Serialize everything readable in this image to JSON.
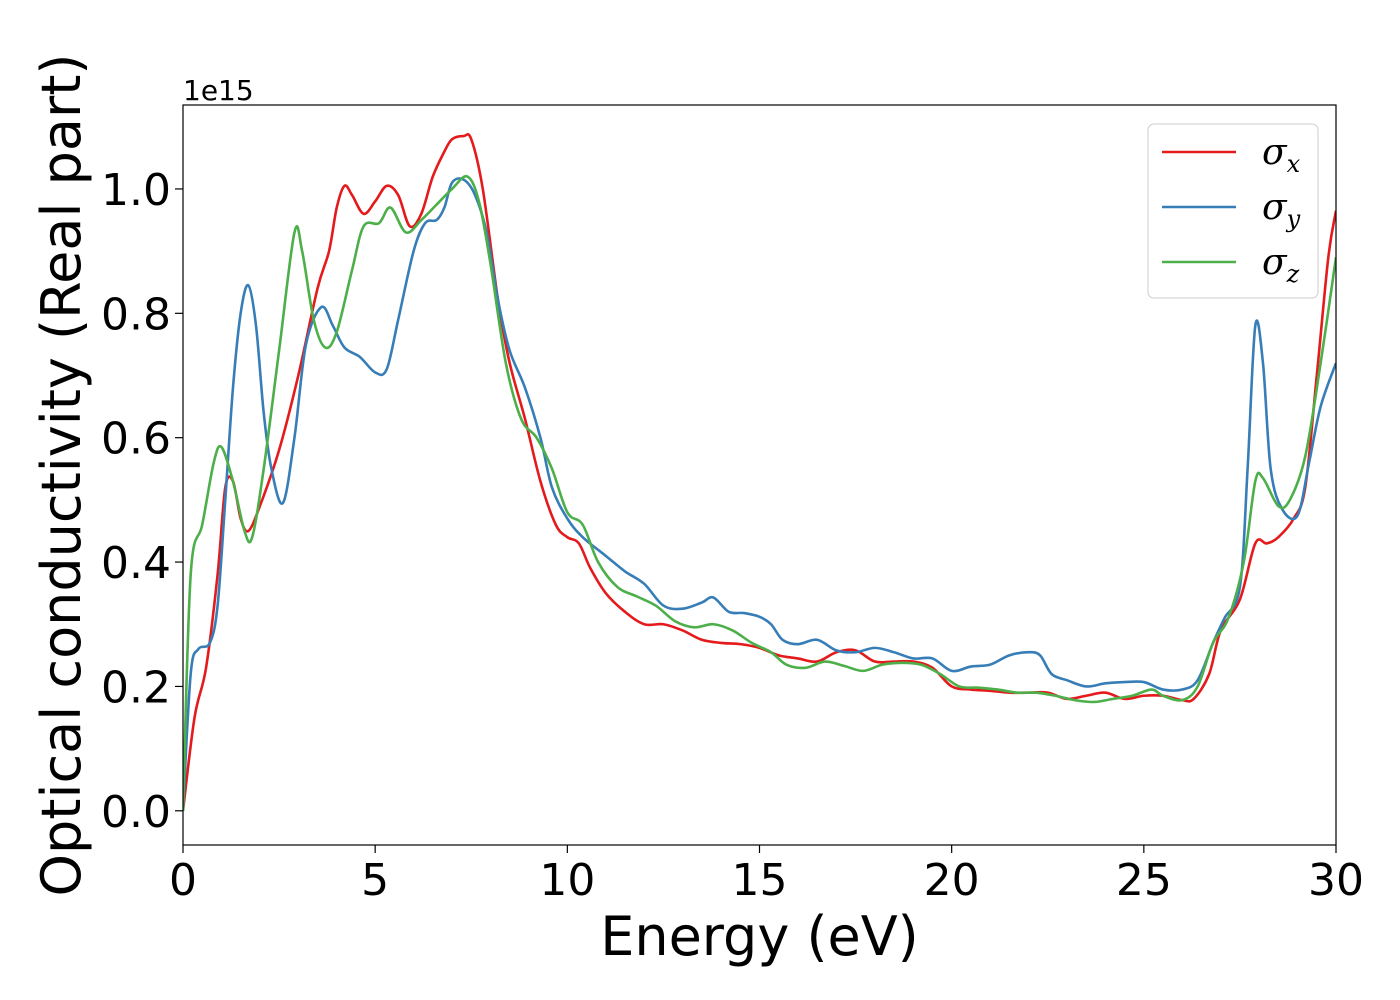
{
  "chart_data": {
    "type": "line",
    "title": "",
    "xlabel": "Energy (eV)",
    "ylabel": "Optical conductivity (Real part)",
    "y_offset_text": "1e15",
    "xlim": [
      0,
      30
    ],
    "ylim": [
      -0.055,
      1.135
    ],
    "x_ticks": [
      0,
      5,
      10,
      15,
      20,
      25,
      30
    ],
    "x_tick_labels": [
      "0",
      "5",
      "10",
      "15",
      "20",
      "25",
      "30"
    ],
    "y_ticks": [
      0.0,
      0.2,
      0.4,
      0.6,
      0.8,
      1.0
    ],
    "y_tick_labels": [
      "0.0",
      "0.2",
      "0.4",
      "0.6",
      "0.8",
      "1.0"
    ],
    "grid": false,
    "legend_position": "top-right",
    "series": [
      {
        "name": "σx",
        "legend_symbol": "σ",
        "legend_subscript": "x",
        "color": "#e41a1c",
        "points": [
          [
            0,
            0
          ],
          [
            0.3,
            0.15
          ],
          [
            0.6,
            0.23
          ],
          [
            0.9,
            0.38
          ],
          [
            1.1,
            0.52
          ],
          [
            1.3,
            0.53
          ],
          [
            1.5,
            0.47
          ],
          [
            1.7,
            0.45
          ],
          [
            2.0,
            0.49
          ],
          [
            2.5,
            0.58
          ],
          [
            3.0,
            0.7
          ],
          [
            3.5,
            0.84
          ],
          [
            3.8,
            0.9
          ],
          [
            4.0,
            0.97
          ],
          [
            4.2,
            1.005
          ],
          [
            4.4,
            0.99
          ],
          [
            4.7,
            0.96
          ],
          [
            5.0,
            0.98
          ],
          [
            5.3,
            1.005
          ],
          [
            5.6,
            0.99
          ],
          [
            5.9,
            0.94
          ],
          [
            6.2,
            0.96
          ],
          [
            6.5,
            1.02
          ],
          [
            6.8,
            1.06
          ],
          [
            7.0,
            1.08
          ],
          [
            7.3,
            1.085
          ],
          [
            7.5,
            1.08
          ],
          [
            7.8,
            1.0
          ],
          [
            8.2,
            0.82
          ],
          [
            8.5,
            0.72
          ],
          [
            8.9,
            0.63
          ],
          [
            9.3,
            0.53
          ],
          [
            9.7,
            0.46
          ],
          [
            10.0,
            0.44
          ],
          [
            10.3,
            0.43
          ],
          [
            10.6,
            0.39
          ],
          [
            11.0,
            0.35
          ],
          [
            11.5,
            0.32
          ],
          [
            12.0,
            0.3
          ],
          [
            12.5,
            0.3
          ],
          [
            13.0,
            0.29
          ],
          [
            13.5,
            0.275
          ],
          [
            14.0,
            0.27
          ],
          [
            14.5,
            0.268
          ],
          [
            15.0,
            0.262
          ],
          [
            15.5,
            0.25
          ],
          [
            16.0,
            0.245
          ],
          [
            16.5,
            0.24
          ],
          [
            17.0,
            0.255
          ],
          [
            17.5,
            0.258
          ],
          [
            18.0,
            0.24
          ],
          [
            18.5,
            0.24
          ],
          [
            19.0,
            0.24
          ],
          [
            19.5,
            0.23
          ],
          [
            20.0,
            0.2
          ],
          [
            20.5,
            0.195
          ],
          [
            21.0,
            0.193
          ],
          [
            21.5,
            0.19
          ],
          [
            22.0,
            0.19
          ],
          [
            22.5,
            0.19
          ],
          [
            23.0,
            0.18
          ],
          [
            23.5,
            0.185
          ],
          [
            24.0,
            0.19
          ],
          [
            24.5,
            0.18
          ],
          [
            25.0,
            0.185
          ],
          [
            25.5,
            0.185
          ],
          [
            26.0,
            0.178
          ],
          [
            26.3,
            0.18
          ],
          [
            26.7,
            0.22
          ],
          [
            27.0,
            0.29
          ],
          [
            27.5,
            0.34
          ],
          [
            27.9,
            0.43
          ],
          [
            28.2,
            0.43
          ],
          [
            28.5,
            0.44
          ],
          [
            28.9,
            0.47
          ],
          [
            29.2,
            0.52
          ],
          [
            29.5,
            0.7
          ],
          [
            29.8,
            0.89
          ],
          [
            30.0,
            0.965
          ]
        ]
      },
      {
        "name": "σy",
        "legend_symbol": "σ",
        "legend_subscript": "y",
        "color": "#377eb8",
        "points": [
          [
            0,
            0
          ],
          [
            0.2,
            0.22
          ],
          [
            0.4,
            0.26
          ],
          [
            0.7,
            0.27
          ],
          [
            0.9,
            0.33
          ],
          [
            1.1,
            0.5
          ],
          [
            1.3,
            0.68
          ],
          [
            1.5,
            0.8
          ],
          [
            1.7,
            0.845
          ],
          [
            1.9,
            0.78
          ],
          [
            2.1,
            0.64
          ],
          [
            2.3,
            0.55
          ],
          [
            2.6,
            0.495
          ],
          [
            2.9,
            0.6
          ],
          [
            3.2,
            0.75
          ],
          [
            3.6,
            0.81
          ],
          [
            3.9,
            0.78
          ],
          [
            4.2,
            0.745
          ],
          [
            4.6,
            0.73
          ],
          [
            5.0,
            0.705
          ],
          [
            5.3,
            0.71
          ],
          [
            5.6,
            0.79
          ],
          [
            6.0,
            0.9
          ],
          [
            6.3,
            0.945
          ],
          [
            6.6,
            0.95
          ],
          [
            6.8,
            0.97
          ],
          [
            7.0,
            1.01
          ],
          [
            7.3,
            1.015
          ],
          [
            7.6,
            0.99
          ],
          [
            7.9,
            0.93
          ],
          [
            8.2,
            0.82
          ],
          [
            8.5,
            0.74
          ],
          [
            8.9,
            0.68
          ],
          [
            9.3,
            0.6
          ],
          [
            9.6,
            0.52
          ],
          [
            10.0,
            0.47
          ],
          [
            10.4,
            0.44
          ],
          [
            11.0,
            0.41
          ],
          [
            11.5,
            0.385
          ],
          [
            12.0,
            0.365
          ],
          [
            12.5,
            0.33
          ],
          [
            13.0,
            0.325
          ],
          [
            13.5,
            0.335
          ],
          [
            13.8,
            0.343
          ],
          [
            14.2,
            0.32
          ],
          [
            14.6,
            0.318
          ],
          [
            15.0,
            0.312
          ],
          [
            15.3,
            0.3
          ],
          [
            15.6,
            0.275
          ],
          [
            16.0,
            0.268
          ],
          [
            16.5,
            0.275
          ],
          [
            17.0,
            0.258
          ],
          [
            17.5,
            0.255
          ],
          [
            18.0,
            0.262
          ],
          [
            18.5,
            0.255
          ],
          [
            19.0,
            0.245
          ],
          [
            19.5,
            0.245
          ],
          [
            20.0,
            0.225
          ],
          [
            20.5,
            0.232
          ],
          [
            21.0,
            0.235
          ],
          [
            21.5,
            0.25
          ],
          [
            22.0,
            0.255
          ],
          [
            22.3,
            0.25
          ],
          [
            22.6,
            0.22
          ],
          [
            23.0,
            0.21
          ],
          [
            23.5,
            0.2
          ],
          [
            24.0,
            0.205
          ],
          [
            24.5,
            0.207
          ],
          [
            25.0,
            0.207
          ],
          [
            25.5,
            0.195
          ],
          [
            26.0,
            0.195
          ],
          [
            26.4,
            0.21
          ],
          [
            26.8,
            0.27
          ],
          [
            27.1,
            0.31
          ],
          [
            27.5,
            0.36
          ],
          [
            27.7,
            0.55
          ],
          [
            27.9,
            0.78
          ],
          [
            28.1,
            0.72
          ],
          [
            28.3,
            0.55
          ],
          [
            28.6,
            0.485
          ],
          [
            29.0,
            0.475
          ],
          [
            29.3,
            0.56
          ],
          [
            29.6,
            0.65
          ],
          [
            30.0,
            0.72
          ]
        ]
      },
      {
        "name": "σz",
        "legend_symbol": "σ",
        "legend_subscript": "z",
        "color": "#4daf4a",
        "points": [
          [
            0,
            0
          ],
          [
            0.2,
            0.38
          ],
          [
            0.5,
            0.46
          ],
          [
            0.8,
            0.56
          ],
          [
            1.0,
            0.585
          ],
          [
            1.3,
            0.53
          ],
          [
            1.6,
            0.45
          ],
          [
            1.8,
            0.44
          ],
          [
            2.1,
            0.55
          ],
          [
            2.5,
            0.74
          ],
          [
            2.9,
            0.93
          ],
          [
            3.1,
            0.9
          ],
          [
            3.4,
            0.79
          ],
          [
            3.7,
            0.745
          ],
          [
            4.0,
            0.77
          ],
          [
            4.4,
            0.87
          ],
          [
            4.7,
            0.94
          ],
          [
            5.1,
            0.945
          ],
          [
            5.4,
            0.97
          ],
          [
            5.8,
            0.93
          ],
          [
            6.2,
            0.95
          ],
          [
            6.6,
            0.975
          ],
          [
            7.0,
            1.0
          ],
          [
            7.4,
            1.02
          ],
          [
            7.7,
            0.98
          ],
          [
            8.0,
            0.88
          ],
          [
            8.4,
            0.72
          ],
          [
            8.8,
            0.63
          ],
          [
            9.2,
            0.6
          ],
          [
            9.6,
            0.55
          ],
          [
            10.0,
            0.48
          ],
          [
            10.4,
            0.46
          ],
          [
            10.8,
            0.4
          ],
          [
            11.3,
            0.36
          ],
          [
            11.8,
            0.345
          ],
          [
            12.3,
            0.33
          ],
          [
            12.8,
            0.305
          ],
          [
            13.3,
            0.295
          ],
          [
            13.8,
            0.3
          ],
          [
            14.3,
            0.29
          ],
          [
            14.8,
            0.27
          ],
          [
            15.3,
            0.255
          ],
          [
            15.7,
            0.235
          ],
          [
            16.2,
            0.23
          ],
          [
            16.7,
            0.24
          ],
          [
            17.2,
            0.233
          ],
          [
            17.7,
            0.225
          ],
          [
            18.2,
            0.235
          ],
          [
            18.7,
            0.238
          ],
          [
            19.2,
            0.235
          ],
          [
            19.7,
            0.22
          ],
          [
            20.2,
            0.2
          ],
          [
            20.7,
            0.198
          ],
          [
            21.2,
            0.195
          ],
          [
            21.7,
            0.19
          ],
          [
            22.2,
            0.19
          ],
          [
            22.7,
            0.185
          ],
          [
            23.2,
            0.178
          ],
          [
            23.7,
            0.175
          ],
          [
            24.2,
            0.18
          ],
          [
            24.7,
            0.185
          ],
          [
            25.2,
            0.195
          ],
          [
            25.5,
            0.185
          ],
          [
            26.0,
            0.178
          ],
          [
            26.4,
            0.2
          ],
          [
            26.8,
            0.27
          ],
          [
            27.2,
            0.31
          ],
          [
            27.6,
            0.4
          ],
          [
            27.9,
            0.53
          ],
          [
            28.1,
            0.535
          ],
          [
            28.5,
            0.49
          ],
          [
            28.8,
            0.5
          ],
          [
            29.2,
            0.57
          ],
          [
            29.6,
            0.72
          ],
          [
            30.0,
            0.89
          ]
        ]
      }
    ]
  }
}
